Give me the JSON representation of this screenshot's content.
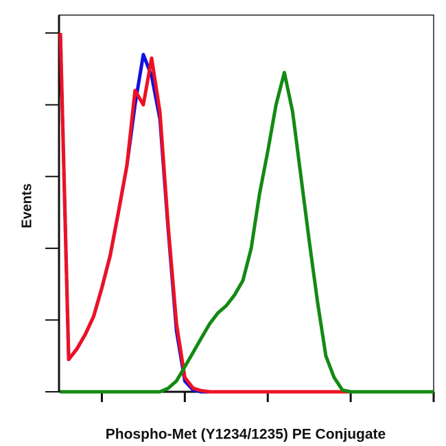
{
  "chart_data": {
    "type": "line",
    "xlabel": "Phospho-Met (Y1234/1235) PE Conjugate",
    "ylabel": "Events",
    "xlog": true,
    "xlim": [
      3.16,
      100000
    ],
    "xticks": [
      10,
      100,
      1000,
      10000,
      100000
    ],
    "ylim": [
      0,
      105
    ],
    "yticks": [
      0,
      20,
      40,
      60,
      80,
      100
    ],
    "x": [
      3.16,
      3.98,
      5.01,
      6.31,
      7.94,
      10,
      12.6,
      15.8,
      20,
      25.1,
      31.6,
      39.8,
      50.1,
      63.1,
      79.4,
      100,
      126,
      158,
      200,
      251,
      316,
      398,
      501,
      631,
      794,
      1000,
      1259,
      1585,
      1995,
      2512,
      3162,
      3981,
      5012,
      6310,
      7943,
      10000,
      12589,
      15849,
      19953,
      25119,
      31623,
      39811,
      50119,
      63096,
      79433,
      100000
    ],
    "series": [
      {
        "color": "#1010e0",
        "values": [
          100,
          9,
          12,
          16,
          21,
          29,
          38,
          50,
          63,
          80,
          94,
          88,
          76,
          45,
          17,
          3,
          0.5,
          0,
          0,
          0,
          0,
          0,
          0,
          0,
          0,
          0,
          0,
          0,
          0,
          0,
          0,
          0,
          0,
          0,
          0,
          0,
          0,
          0,
          0,
          0,
          0,
          0,
          0,
          0,
          0,
          0
        ]
      },
      {
        "color": "#ee1122",
        "values": [
          100,
          9,
          12,
          16,
          21,
          29,
          38,
          50,
          63,
          84,
          80,
          93,
          78,
          46,
          19,
          4,
          1,
          0.3,
          0,
          0,
          0,
          0,
          0,
          0,
          0,
          0,
          0,
          0,
          0,
          0,
          0,
          0,
          0,
          0,
          0,
          0,
          0,
          0,
          0,
          0,
          0,
          0,
          0,
          0,
          0,
          0
        ]
      },
      {
        "color": "#138a13",
        "values": [
          0,
          0,
          0,
          0,
          0,
          0,
          0,
          0,
          0,
          0,
          0,
          0,
          0,
          1,
          3,
          7,
          11,
          15,
          19,
          22,
          24,
          27,
          31,
          40,
          55,
          67,
          80,
          89,
          78,
          60,
          42,
          25,
          10,
          4,
          0.5,
          0,
          0,
          0,
          0,
          0,
          0,
          0,
          0,
          0,
          0,
          0
        ]
      }
    ]
  }
}
